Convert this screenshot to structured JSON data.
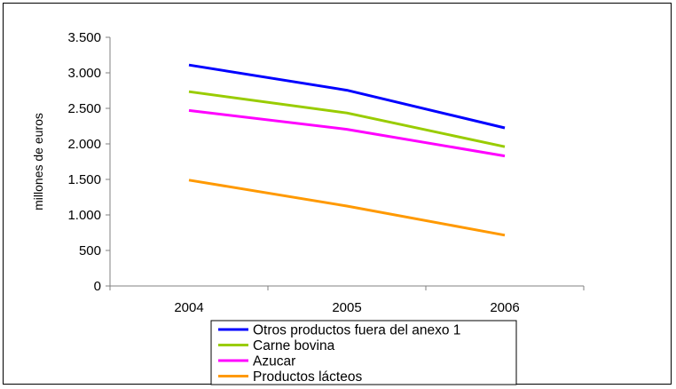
{
  "chart_data": {
    "type": "line",
    "title": "",
    "xlabel": "",
    "ylabel": "millones de euros",
    "categories": [
      "2004",
      "2005",
      "2006"
    ],
    "ylim": [
      0,
      3500
    ],
    "yticks": [
      0,
      500,
      1000,
      1500,
      2000,
      2500,
      3000,
      3500
    ],
    "ytick_labels": [
      "0",
      "500",
      "1.000",
      "1.500",
      "2.000",
      "2.500",
      "3.000",
      "3.500"
    ],
    "grid": false,
    "legend_position": "bottom",
    "series": [
      {
        "name": "Otros productos fuera del anexo 1",
        "color": "#0000ff",
        "values": [
          3110,
          2755,
          2225
        ]
      },
      {
        "name": "Carne bovina",
        "color": "#99cc00",
        "values": [
          2735,
          2435,
          1960
        ]
      },
      {
        "name": "Azucar",
        "color": "#ff00ff",
        "values": [
          2470,
          2205,
          1830
        ]
      },
      {
        "name": "Productos lácteos",
        "color": "#ff9900",
        "values": [
          1490,
          1125,
          715
        ]
      }
    ]
  }
}
